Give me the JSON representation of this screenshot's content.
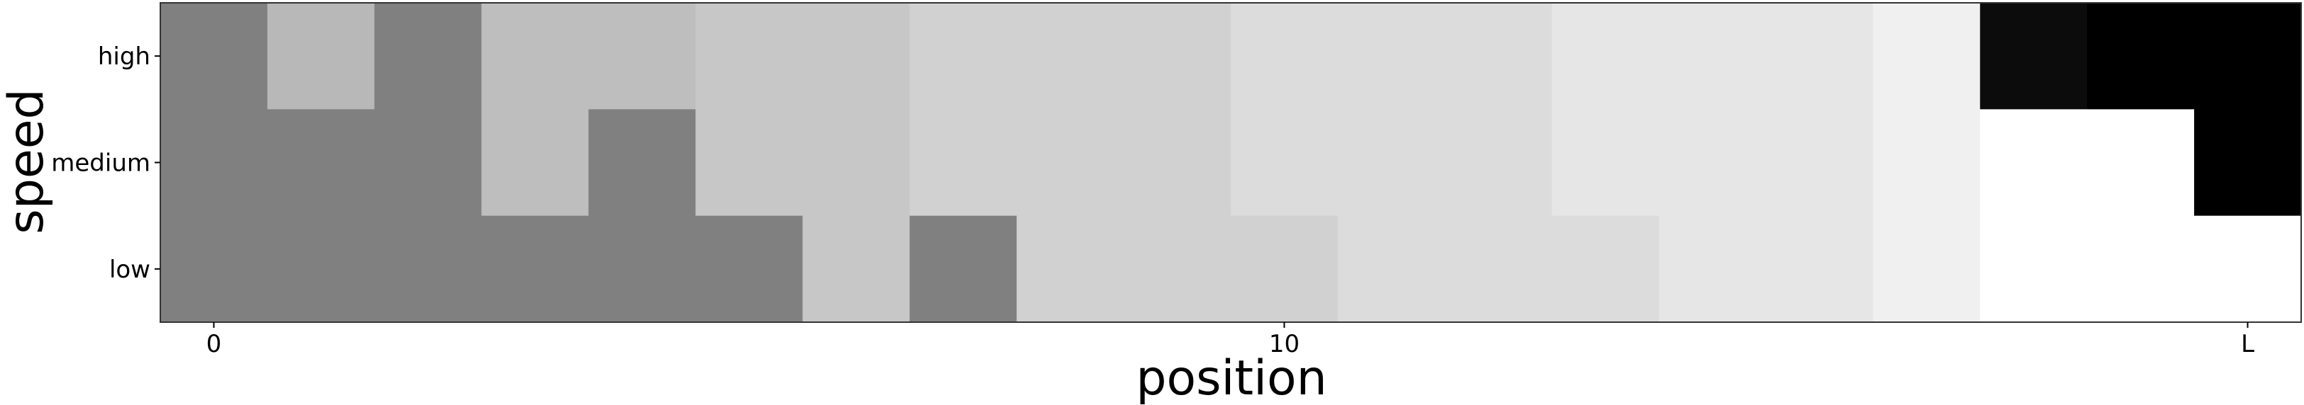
{
  "chart_data": {
    "type": "heatmap",
    "title": "",
    "xlabel": "position",
    "ylabel": "speed",
    "x_ticks": [
      {
        "position": 0,
        "label": "0"
      },
      {
        "position": 10,
        "label": "10"
      },
      {
        "position": 19,
        "label": "L"
      }
    ],
    "rows": [
      "high",
      "medium",
      "low"
    ],
    "columns": [
      0,
      1,
      2,
      3,
      4,
      5,
      6,
      7,
      8,
      9,
      10,
      11,
      12,
      13,
      14,
      15,
      16,
      17,
      18,
      19
    ],
    "values": [
      [
        128,
        184,
        128,
        190,
        190,
        199,
        199,
        209,
        209,
        209,
        220,
        220,
        220,
        230,
        230,
        230,
        240,
        12,
        0,
        0
      ],
      [
        128,
        128,
        128,
        190,
        128,
        199,
        199,
        209,
        209,
        209,
        220,
        220,
        220,
        230,
        230,
        230,
        240,
        255,
        255,
        0
      ],
      [
        128,
        128,
        128,
        128,
        128,
        128,
        199,
        128,
        209,
        209,
        209,
        220,
        220,
        220,
        230,
        230,
        240,
        255,
        255,
        255
      ]
    ],
    "value_encoding": "grayscale",
    "colorbar": false,
    "grid": false
  }
}
